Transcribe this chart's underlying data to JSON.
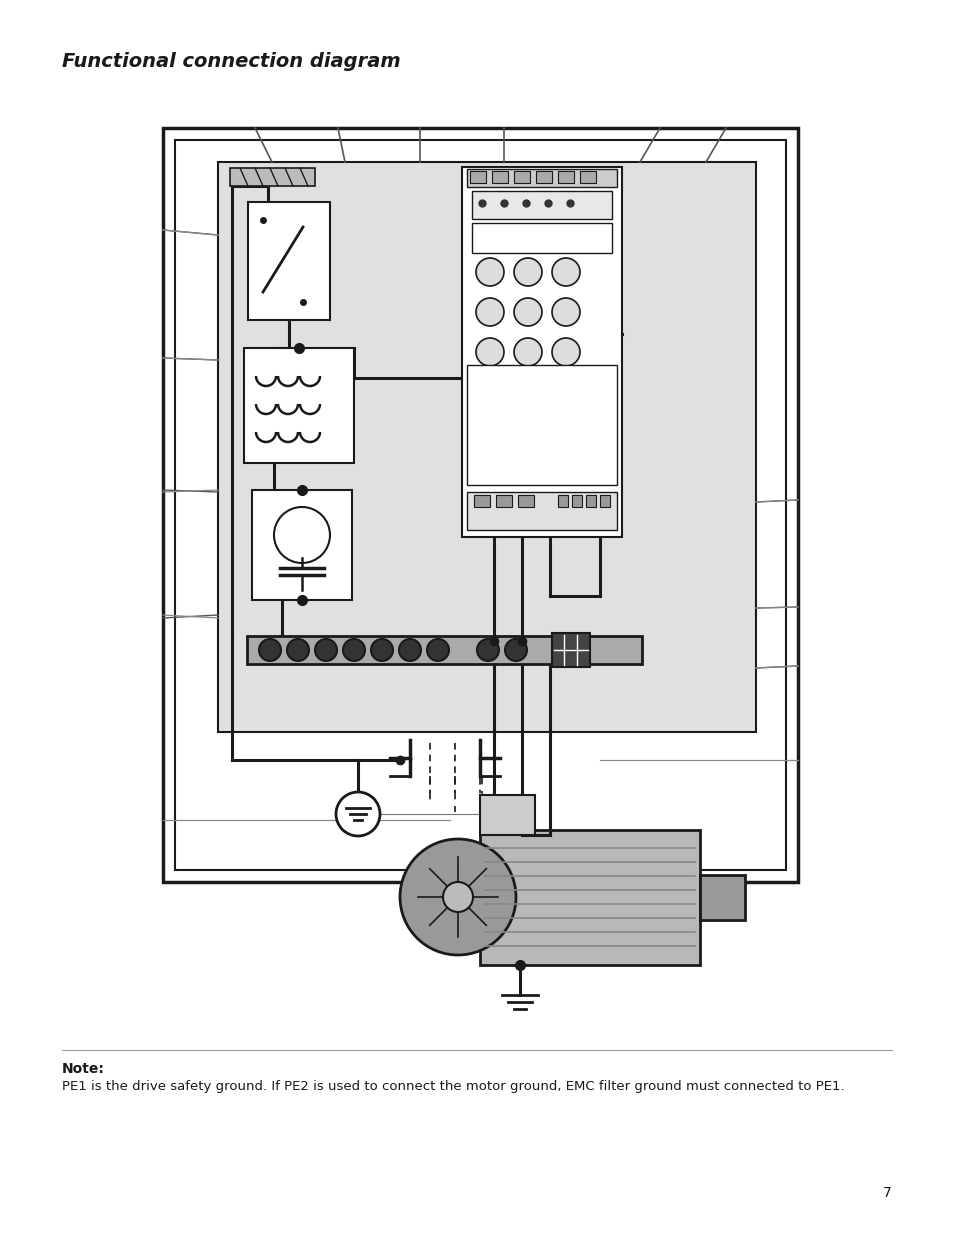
{
  "title": "Functional connection diagram",
  "note_bold": "Note:",
  "note_text": "PE1 is the drive safety ground. If PE2 is used to connect the motor ground, EMC filter ground must connected to PE1.",
  "page_number": "7",
  "bg_color": "#ffffff",
  "diagram_bg": "#e0e0e0",
  "dark_color": "#1a1a1a",
  "gray_color": "#888888",
  "light_gray": "#cccccc"
}
